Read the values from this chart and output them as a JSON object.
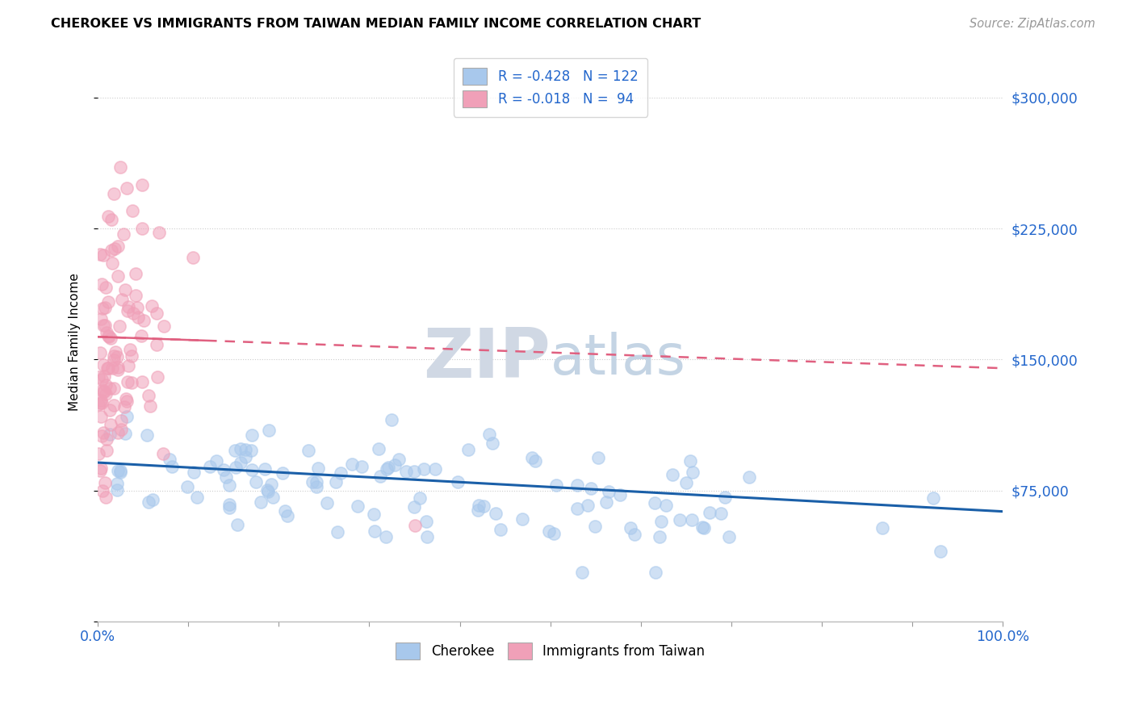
{
  "title": "CHEROKEE VS IMMIGRANTS FROM TAIWAN MEDIAN FAMILY INCOME CORRELATION CHART",
  "source": "Source: ZipAtlas.com",
  "ylabel": "Median Family Income",
  "yticks": [
    0,
    75000,
    150000,
    225000,
    300000
  ],
  "xlim": [
    0.0,
    1.0
  ],
  "ylim": [
    0,
    320000
  ],
  "cherokee_color": "#A8C8EC",
  "taiwan_color": "#F0A0B8",
  "cherokee_line_color": "#1A5FA8",
  "taiwan_line_color": "#E06080",
  "cherokee_R": -0.428,
  "cherokee_N": 122,
  "taiwan_R": -0.018,
  "taiwan_N": 94,
  "watermark": "ZIPatlas",
  "watermark_color_zip": "#C0CCDD",
  "watermark_color_atlas": "#B0C8E0",
  "background_color": "#FFFFFF",
  "cherokee_intercept": 91000,
  "cherokee_slope": -28000,
  "taiwan_intercept": 163000,
  "taiwan_slope": -18000,
  "dot_size": 120,
  "dot_alpha": 0.55,
  "dot_linewidth": 1.2
}
